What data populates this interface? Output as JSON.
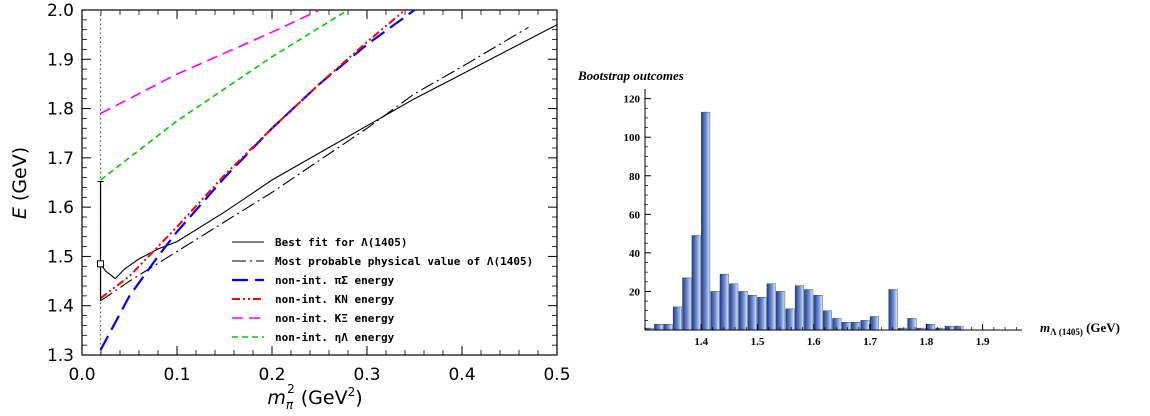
{
  "chart_data": [
    {
      "type": "line",
      "xlabel_main": "m",
      "xlabel_sub": "π",
      "xlabel_sup": "2",
      "xlabel_unit": "(GeV",
      "xlabel_unit_sup": "2",
      "xlabel_close": ")",
      "ylabel_main": "E",
      "ylabel_unit": "(GeV)",
      "xlim": [
        0.0,
        0.5
      ],
      "ylim": [
        1.3,
        2.0
      ],
      "xticks": [
        "0.0",
        "0.1",
        "0.2",
        "0.3",
        "0.4",
        "0.5"
      ],
      "yticks": [
        "1.3",
        "1.4",
        "1.5",
        "1.6",
        "1.7",
        "1.8",
        "1.9",
        "2.0"
      ],
      "physical_point_x": 0.0195,
      "data_point": {
        "x": 0.0195,
        "y": 1.485,
        "y_high": 1.652,
        "y_low": 1.41
      },
      "series": [
        {
          "name": "Best fit for Λ(1405)",
          "color": "#000000",
          "dash": "solid",
          "x": [
            0.0195,
            0.025,
            0.035,
            0.045,
            0.06,
            0.08,
            0.1,
            0.15,
            0.2,
            0.25,
            0.3,
            0.35,
            0.4,
            0.45,
            0.5
          ],
          "y": [
            1.485,
            1.47,
            1.455,
            1.475,
            1.495,
            1.515,
            1.53,
            1.59,
            1.655,
            1.71,
            1.765,
            1.82,
            1.87,
            1.92,
            1.97
          ]
        },
        {
          "name": "Most probable physical value of Λ(1405)",
          "color": "#000000",
          "dash": "dashdot",
          "x": [
            0.0195,
            0.05,
            0.1,
            0.15,
            0.2,
            0.25,
            0.3,
            0.35,
            0.4,
            0.47
          ],
          "y": [
            1.41,
            1.45,
            1.51,
            1.57,
            1.63,
            1.695,
            1.76,
            1.83,
            1.885,
            1.965
          ]
        },
        {
          "name": "non-int. πΣ energy",
          "color": "#0000ff",
          "dash": "longdash",
          "x": [
            0.0195,
            0.05,
            0.08,
            0.1,
            0.15,
            0.2,
            0.25,
            0.3,
            0.35
          ],
          "y": [
            1.31,
            1.42,
            1.5,
            1.55,
            1.66,
            1.76,
            1.85,
            1.93,
            2.0
          ]
        },
        {
          "name": "non-int. KN energy",
          "color": "#ff0000",
          "dash": "dashdotdot",
          "x": [
            0.0195,
            0.05,
            0.1,
            0.15,
            0.2,
            0.25,
            0.3,
            0.34
          ],
          "y": [
            1.415,
            1.46,
            1.56,
            1.665,
            1.76,
            1.85,
            1.935,
            2.0
          ]
        },
        {
          "name": "non-int. KΞ energy",
          "color": "#ff00ff",
          "dash": "dashed",
          "x": [
            0.0195,
            0.1,
            0.2,
            0.25
          ],
          "y": [
            1.79,
            1.87,
            1.955,
            2.0
          ]
        },
        {
          "name": "non-int. ηΛ energy",
          "color": "#00cc00",
          "dash": "shortdash",
          "x": [
            0.0195,
            0.1,
            0.2,
            0.28
          ],
          "y": [
            1.655,
            1.775,
            1.905,
            2.0
          ]
        }
      ]
    },
    {
      "type": "bar",
      "title": "Bootstrap outcomes",
      "xlabel_main": "m",
      "xlabel_sub": "Λ (1405)",
      "xlabel_unit": "(GeV)",
      "xlim": [
        1.3,
        1.97
      ],
      "ylim": [
        0,
        125
      ],
      "xticks": [
        "1.4",
        "1.5",
        "1.6",
        "1.7",
        "1.8",
        "1.9"
      ],
      "yticks": [
        "20",
        "40",
        "60",
        "80",
        "100",
        "120"
      ],
      "bin_width": 0.0167,
      "bin_starts": [
        1.3,
        1.3167,
        1.3333,
        1.35,
        1.3667,
        1.3833,
        1.4,
        1.4167,
        1.4333,
        1.45,
        1.4667,
        1.4833,
        1.5,
        1.5167,
        1.5333,
        1.55,
        1.5667,
        1.5833,
        1.6,
        1.6167,
        1.6333,
        1.65,
        1.6667,
        1.6833,
        1.7,
        1.7167,
        1.7333,
        1.75,
        1.7667,
        1.7833,
        1.8,
        1.8167,
        1.8333,
        1.85,
        1.8667,
        1.8833,
        1.9,
        1.9167,
        1.9333,
        1.95
      ],
      "values": [
        1,
        3,
        3,
        12,
        27,
        49,
        113,
        20,
        29,
        24,
        20,
        18,
        17,
        24,
        20,
        11,
        23,
        21,
        18,
        10,
        6,
        4,
        4,
        5,
        7,
        0,
        21,
        1,
        6,
        1,
        3,
        1,
        2,
        2,
        0,
        0,
        0,
        0,
        0,
        0
      ]
    }
  ]
}
